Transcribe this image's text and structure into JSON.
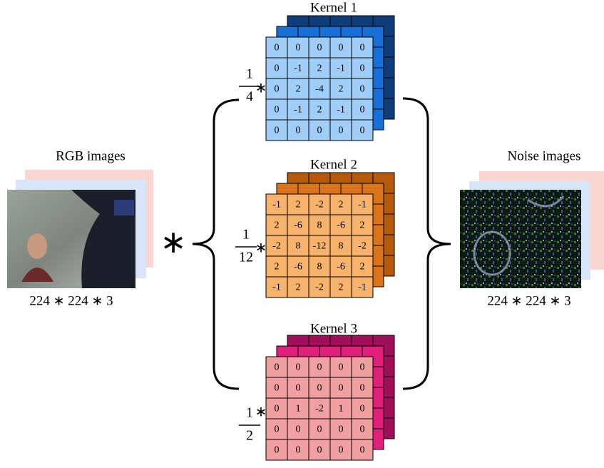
{
  "input": {
    "label": "RGB images",
    "size": "224 ∗ 224 ∗ 3"
  },
  "operator": "∗",
  "kernels": [
    {
      "title": "Kernel 1",
      "numerator": "1",
      "denominator": "4",
      "times": "∗",
      "matrix": [
        [
          0,
          0,
          0,
          0,
          0
        ],
        [
          0,
          -1,
          2,
          -1,
          0
        ],
        [
          0,
          2,
          -4,
          2,
          0
        ],
        [
          0,
          -1,
          2,
          -1,
          0
        ],
        [
          0,
          0,
          0,
          0,
          0
        ]
      ]
    },
    {
      "title": "Kernel 2",
      "numerator": "1",
      "denominator": "12",
      "times": "∗",
      "matrix": [
        [
          -1,
          2,
          -2,
          2,
          -1
        ],
        [
          2,
          -6,
          8,
          -6,
          2
        ],
        [
          -2,
          8,
          -12,
          8,
          -2
        ],
        [
          2,
          -6,
          8,
          -6,
          2
        ],
        [
          -1,
          2,
          -2,
          2,
          -1
        ]
      ]
    },
    {
      "title": "Kernel 3",
      "numerator": "1",
      "denominator": "2",
      "times": "∗",
      "matrix": [
        [
          0,
          0,
          0,
          0,
          0
        ],
        [
          0,
          0,
          0,
          0,
          0
        ],
        [
          0,
          1,
          -2,
          1,
          0
        ],
        [
          0,
          0,
          0,
          0,
          0
        ],
        [
          0,
          0,
          0,
          0,
          0
        ]
      ]
    }
  ],
  "output": {
    "label": "Noise images",
    "size": "224 ∗ 224 ∗ 3"
  }
}
